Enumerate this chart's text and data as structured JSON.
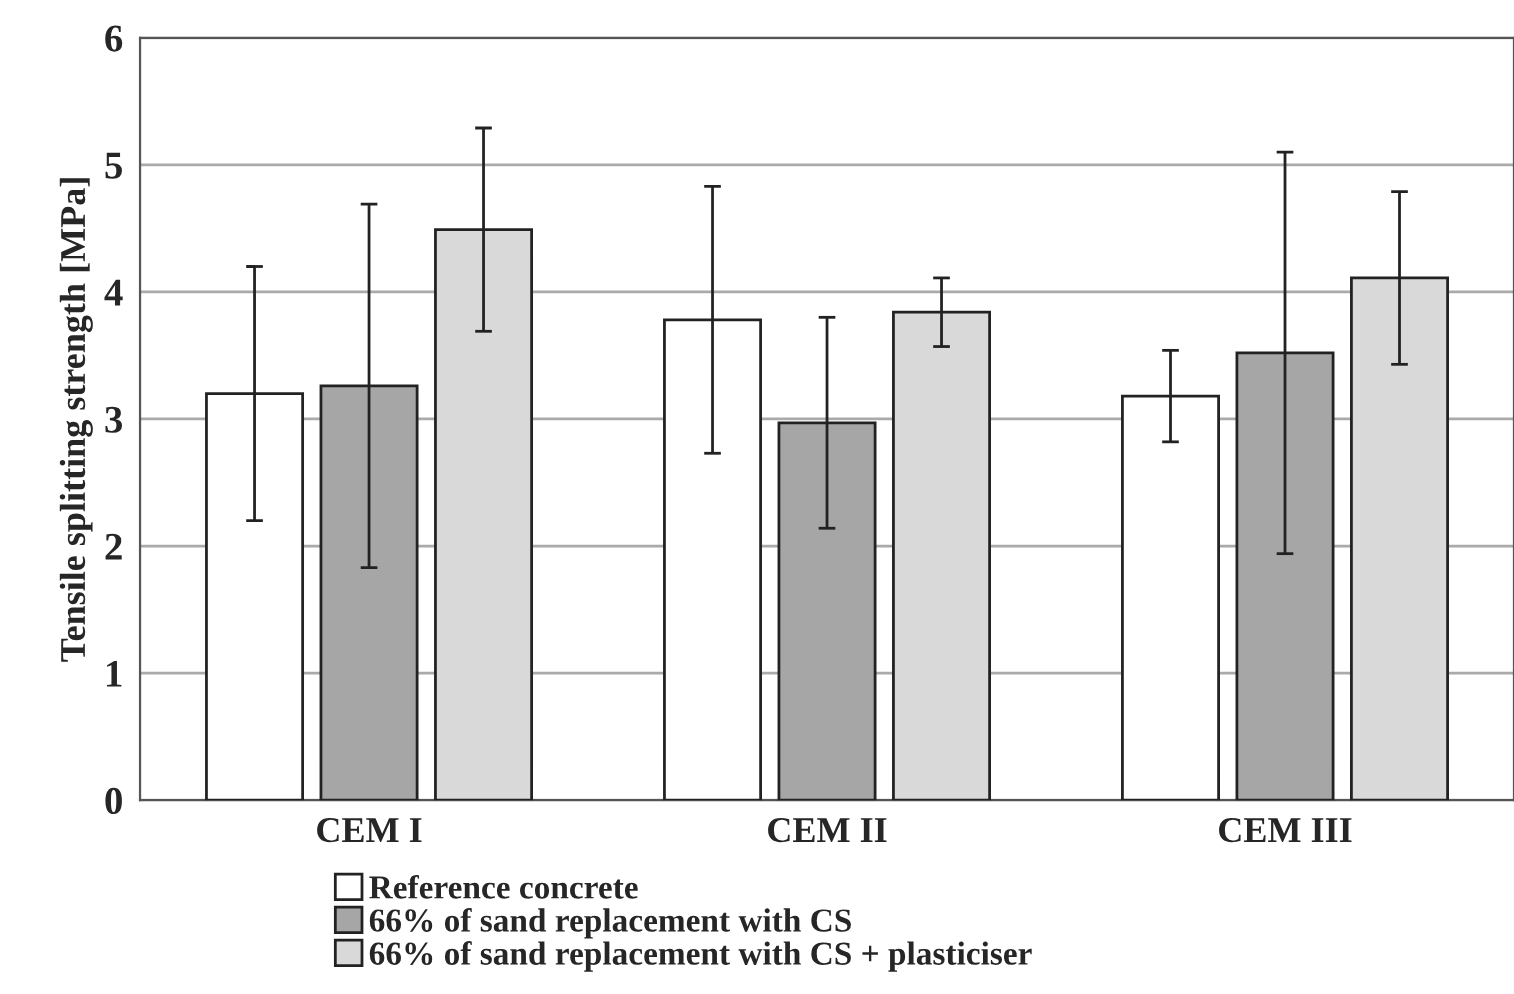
{
  "chart_data": {
    "type": "bar",
    "ylabel": "Tensile splitting strength [MPa]",
    "categories": [
      "CEM I",
      "CEM II",
      "CEM III"
    ],
    "series": [
      {
        "name": "Reference concrete",
        "color": "#ffffff",
        "values": [
          3.2,
          3.78,
          3.18
        ],
        "errors": [
          1.0,
          1.05,
          0.36
        ]
      },
      {
        "name": "66% of sand replacement with CS",
        "color": "#a6a6a6",
        "values": [
          3.26,
          2.97,
          3.52
        ],
        "errors": [
          1.43,
          0.83,
          1.58
        ]
      },
      {
        "name": "66% of sand replacement with CS + plasticiser",
        "color": "#d9d9d9",
        "values": [
          4.49,
          3.84,
          4.11
        ],
        "errors": [
          0.8,
          0.27,
          0.68
        ]
      }
    ],
    "ylim": [
      0,
      6
    ],
    "yticks": [
      0,
      1,
      2,
      3,
      4,
      5,
      6
    ],
    "grid": "y",
    "legend": "bottom"
  }
}
